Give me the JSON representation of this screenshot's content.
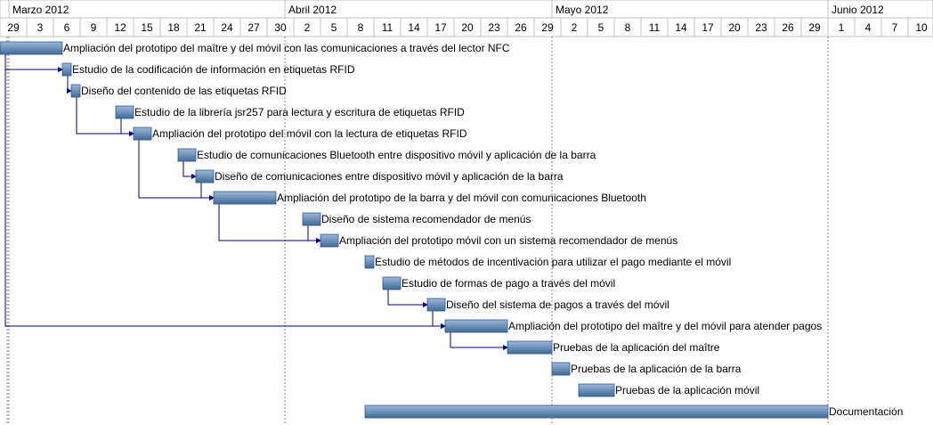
{
  "chart_data": {
    "type": "gantt",
    "timeline_start": "2012-02-29",
    "timeline_end": "2012-06-11",
    "months": [
      {
        "label": "Marzo 2012",
        "start": "2012-03-01"
      },
      {
        "label": "Abril 2012",
        "start": "2012-04-01"
      },
      {
        "label": "Mayo 2012",
        "start": "2012-05-01"
      },
      {
        "label": "Junio 2012",
        "start": "2012-06-01"
      }
    ],
    "day_ticks": [
      {
        "label": "29",
        "date": "2012-02-29"
      },
      {
        "label": "3",
        "date": "2012-03-03"
      },
      {
        "label": "6",
        "date": "2012-03-06"
      },
      {
        "label": "9",
        "date": "2012-03-09"
      },
      {
        "label": "12",
        "date": "2012-03-12"
      },
      {
        "label": "15",
        "date": "2012-03-15"
      },
      {
        "label": "18",
        "date": "2012-03-18"
      },
      {
        "label": "21",
        "date": "2012-03-21"
      },
      {
        "label": "24",
        "date": "2012-03-24"
      },
      {
        "label": "27",
        "date": "2012-03-27"
      },
      {
        "label": "30",
        "date": "2012-03-30"
      },
      {
        "label": "2",
        "date": "2012-04-02"
      },
      {
        "label": "5",
        "date": "2012-04-05"
      },
      {
        "label": "8",
        "date": "2012-04-08"
      },
      {
        "label": "11",
        "date": "2012-04-11"
      },
      {
        "label": "14",
        "date": "2012-04-14"
      },
      {
        "label": "17",
        "date": "2012-04-17"
      },
      {
        "label": "20",
        "date": "2012-04-20"
      },
      {
        "label": "23",
        "date": "2012-04-23"
      },
      {
        "label": "26",
        "date": "2012-04-26"
      },
      {
        "label": "29",
        "date": "2012-04-29"
      },
      {
        "label": "2",
        "date": "2012-05-02"
      },
      {
        "label": "5",
        "date": "2012-05-05"
      },
      {
        "label": "8",
        "date": "2012-05-08"
      },
      {
        "label": "11",
        "date": "2012-05-11"
      },
      {
        "label": "14",
        "date": "2012-05-14"
      },
      {
        "label": "17",
        "date": "2012-05-17"
      },
      {
        "label": "20",
        "date": "2012-05-20"
      },
      {
        "label": "23",
        "date": "2012-05-23"
      },
      {
        "label": "26",
        "date": "2012-05-26"
      },
      {
        "label": "29",
        "date": "2012-05-29"
      },
      {
        "label": "1",
        "date": "2012-06-01"
      },
      {
        "label": "4",
        "date": "2012-06-04"
      },
      {
        "label": "7",
        "date": "2012-06-07"
      },
      {
        "label": "10",
        "date": "2012-06-10"
      }
    ],
    "tasks": [
      {
        "name": "Ampliación del prototipo del maître y del móvil con las comunicaciones a través del lector NFC",
        "start": "2012-02-29",
        "end": "2012-03-07"
      },
      {
        "name": "Estudio de la codificación de información en etiquetas RFID",
        "start": "2012-03-07",
        "end": "2012-03-08"
      },
      {
        "name": "Diseño del contenido de las etiquetas RFID",
        "start": "2012-03-08",
        "end": "2012-03-09"
      },
      {
        "name": "Estudio de la librería jsr257 para lectura y escritura de etiquetas RFID",
        "start": "2012-03-13",
        "end": "2012-03-15"
      },
      {
        "name": "Ampliación del prototipo del móvil con la lectura de etiquetas RFID",
        "start": "2012-03-15",
        "end": "2012-03-17"
      },
      {
        "name": "Estudio de comunicaciones Bluetooth entre dispositivo móvil y aplicación de la barra",
        "start": "2012-03-20",
        "end": "2012-03-22"
      },
      {
        "name": "Diseño de comunicaciones entre dispositivo móvil y aplicación de la barra",
        "start": "2012-03-22",
        "end": "2012-03-24"
      },
      {
        "name": "Ampliación del prototipo de la barra y del móvil con comunicaciones Bluetooth",
        "start": "2012-03-24",
        "end": "2012-03-31"
      },
      {
        "name": "Diseño de sistema recomendador de menús",
        "start": "2012-04-03",
        "end": "2012-04-05"
      },
      {
        "name": "Ampliación del prototipo móvil con un sistema recomendador de menús",
        "start": "2012-04-05",
        "end": "2012-04-07"
      },
      {
        "name": "Estudio de métodos de incentivación para utilizar el pago mediante el móvil",
        "start": "2012-04-10",
        "end": "2012-04-11"
      },
      {
        "name": "Estudio de formas de pago a través del móvil",
        "start": "2012-04-12",
        "end": "2012-04-14"
      },
      {
        "name": "Diseño del sistema de pagos a través del móvil",
        "start": "2012-04-17",
        "end": "2012-04-19"
      },
      {
        "name": "Ampliación del prototipo del maître y del móvil para atender pagos",
        "start": "2012-04-19",
        "end": "2012-04-26"
      },
      {
        "name": "Pruebas de la aplicación del maître",
        "start": "2012-04-26",
        "end": "2012-05-01"
      },
      {
        "name": "Pruebas de la aplicación de la barra",
        "start": "2012-05-01",
        "end": "2012-05-03"
      },
      {
        "name": "Pruebas de la aplicación móvil",
        "start": "2012-05-04",
        "end": "2012-05-08"
      },
      {
        "name": "Documentación",
        "start": "2012-04-10",
        "end": "2012-06-01"
      }
    ],
    "dependencies": [
      {
        "from": 0,
        "to": 1
      },
      {
        "from": 1,
        "to": 2
      },
      {
        "from": 2,
        "to": 4
      },
      {
        "from": 3,
        "to": 4
      },
      {
        "from": 4,
        "to": 7
      },
      {
        "from": 5,
        "to": 6
      },
      {
        "from": 6,
        "to": 7
      },
      {
        "from": 7,
        "to": 9
      },
      {
        "from": 8,
        "to": 9
      },
      {
        "from": 11,
        "to": 12
      },
      {
        "from": 0,
        "to": 13
      },
      {
        "from": 12,
        "to": 13
      },
      {
        "from": 13,
        "to": 14
      }
    ],
    "colors": {
      "bar_top": "#9db9d8",
      "bar_bottom": "#3f6a99",
      "bar_border": "#34598a",
      "connector": "#000080",
      "grid": "#c0c0c0",
      "month_divider": "#808080"
    }
  }
}
